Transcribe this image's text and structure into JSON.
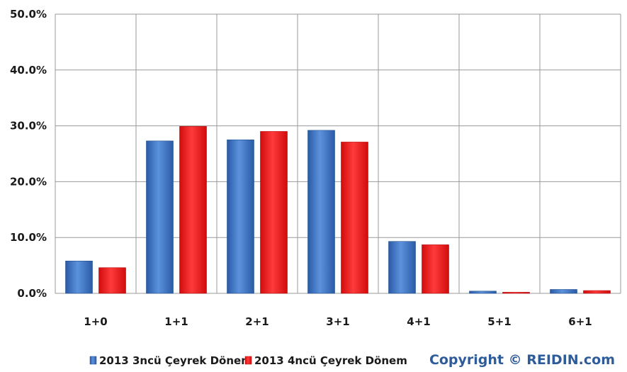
{
  "chart_data": {
    "type": "bar",
    "categories": [
      "1+0",
      "1+1",
      "2+1",
      "3+1",
      "4+1",
      "5+1",
      "6+1"
    ],
    "series": [
      {
        "name": "2013 3ncü Çeyrek Dönem",
        "color": "#3a72c4",
        "values": [
          5.8,
          27.3,
          27.5,
          29.2,
          9.3,
          0.4,
          0.7
        ]
      },
      {
        "name": "2013 4ncü Çeyrek Dönem",
        "color": "#ee1c1c",
        "values": [
          4.6,
          29.9,
          29.0,
          27.1,
          8.7,
          0.2,
          0.5
        ]
      }
    ],
    "ylim": [
      0,
      50
    ],
    "yticks": [
      "0.0%",
      "10.0%",
      "20.0%",
      "30.0%",
      "40.0%",
      "50.0%"
    ],
    "grid": true,
    "legend_position": "bottom-left"
  },
  "copyright": "Copyright © REIDIN.com",
  "colors": {
    "copyright": "#2e5c9a",
    "grid": "#9a9a9a"
  }
}
